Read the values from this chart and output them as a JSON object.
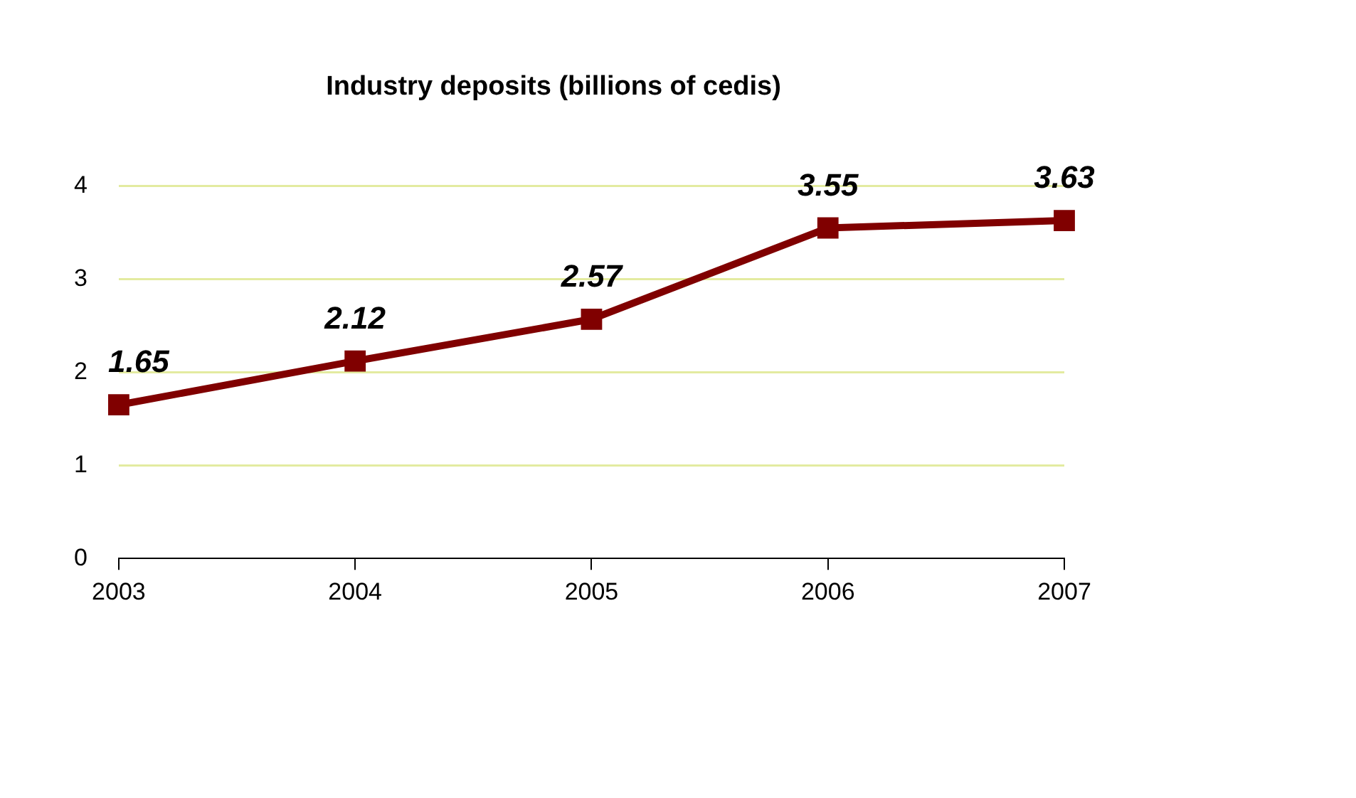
{
  "chart_data": {
    "type": "line",
    "title": "Industry deposits (billions of cedis)",
    "categories": [
      "2003",
      "2004",
      "2005",
      "2006",
      "2007"
    ],
    "values": [
      1.65,
      2.12,
      2.57,
      3.55,
      3.63
    ],
    "color": "#800000",
    "ylim": [
      0,
      4
    ],
    "yticks": [
      0,
      1,
      2,
      3,
      4
    ],
    "grid": "y",
    "marker": "square",
    "data_labels": true
  }
}
